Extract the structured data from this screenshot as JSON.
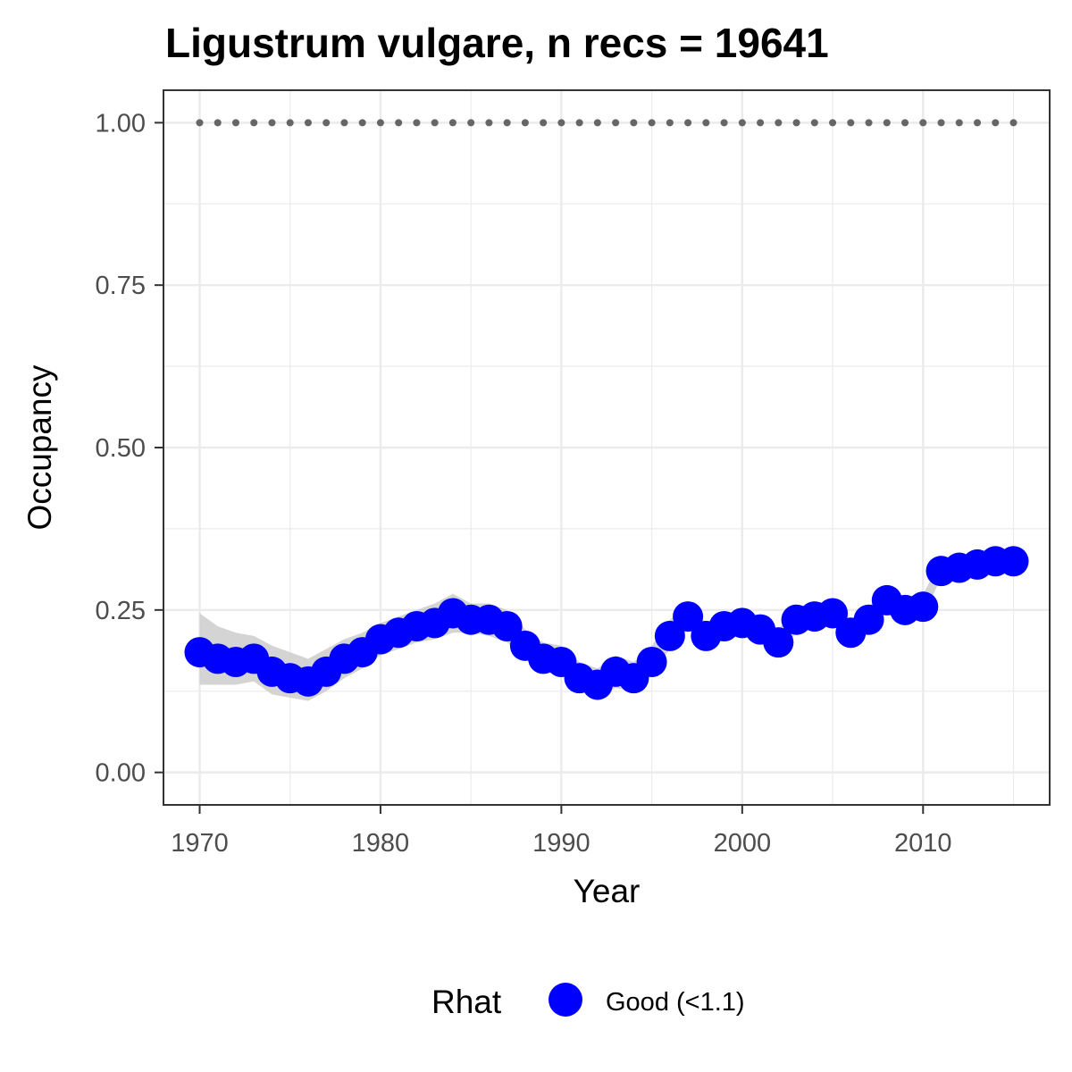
{
  "chart_data": {
    "type": "line",
    "title": "Ligustrum vulgare, n recs = 19641",
    "xlabel": "Year",
    "ylabel": "Occupancy",
    "xlim": [
      1968,
      2017
    ],
    "ylim": [
      -0.05,
      1.05
    ],
    "x_ticks": [
      1970,
      1980,
      1990,
      2000,
      2010
    ],
    "x_tick_labels": [
      "1970",
      "1980",
      "1990",
      "2000",
      "2010"
    ],
    "y_ticks": [
      0,
      0.25,
      0.5,
      0.75,
      1.0
    ],
    "y_tick_labels": [
      "0.00",
      "0.25",
      "0.50",
      "0.75",
      "1.00"
    ],
    "grid": true,
    "legend": {
      "title": "Rhat",
      "position": "bottom",
      "entries": [
        {
          "label": "Good (<1.1)",
          "color": "#0000ff"
        }
      ]
    },
    "colors": {
      "points": "#0000ff",
      "ribbon": "#cccccc",
      "reference_line": "#666666",
      "grid": "#ebebeb",
      "panel_border": "#333333"
    },
    "reference_line": {
      "y": 1.0,
      "style": "dotted"
    },
    "series": [
      {
        "name": "Good (<1.1)",
        "x": [
          1970,
          1971,
          1972,
          1973,
          1974,
          1975,
          1976,
          1977,
          1978,
          1979,
          1980,
          1981,
          1982,
          1983,
          1984,
          1985,
          1986,
          1987,
          1988,
          1989,
          1990,
          1991,
          1992,
          1993,
          1994,
          1995,
          1996,
          1997,
          1998,
          1999,
          2000,
          2001,
          2002,
          2003,
          2004,
          2005,
          2006,
          2007,
          2008,
          2009,
          2010,
          2011,
          2012,
          2013,
          2014,
          2015
        ],
        "y": [
          0.185,
          0.175,
          0.17,
          0.175,
          0.155,
          0.145,
          0.14,
          0.155,
          0.175,
          0.185,
          0.205,
          0.215,
          0.225,
          0.23,
          0.245,
          0.235,
          0.235,
          0.225,
          0.195,
          0.175,
          0.17,
          0.145,
          0.135,
          0.155,
          0.145,
          0.17,
          0.21,
          0.24,
          0.21,
          0.225,
          0.23,
          0.22,
          0.2,
          0.235,
          0.24,
          0.245,
          0.215,
          0.235,
          0.265,
          0.25,
          0.255,
          0.31,
          0.315,
          0.32,
          0.325,
          0.325
        ],
        "lower": [
          0.135,
          0.135,
          0.135,
          0.14,
          0.12,
          0.115,
          0.11,
          0.125,
          0.145,
          0.16,
          0.18,
          0.19,
          0.2,
          0.205,
          0.215,
          0.215,
          0.21,
          0.2,
          0.175,
          0.155,
          0.15,
          0.125,
          0.115,
          0.13,
          0.125,
          0.15,
          0.19,
          0.22,
          0.195,
          0.205,
          0.215,
          0.205,
          0.185,
          0.215,
          0.225,
          0.23,
          0.2,
          0.22,
          0.25,
          0.235,
          0.24,
          0.3,
          0.305,
          0.31,
          0.315,
          0.315
        ],
        "upper": [
          0.245,
          0.225,
          0.215,
          0.21,
          0.195,
          0.185,
          0.175,
          0.19,
          0.205,
          0.215,
          0.23,
          0.24,
          0.25,
          0.26,
          0.275,
          0.26,
          0.26,
          0.25,
          0.22,
          0.2,
          0.195,
          0.17,
          0.16,
          0.18,
          0.17,
          0.195,
          0.235,
          0.26,
          0.23,
          0.245,
          0.25,
          0.24,
          0.22,
          0.255,
          0.26,
          0.265,
          0.235,
          0.255,
          0.285,
          0.27,
          0.275,
          0.325,
          0.33,
          0.335,
          0.34,
          0.34
        ]
      }
    ]
  }
}
